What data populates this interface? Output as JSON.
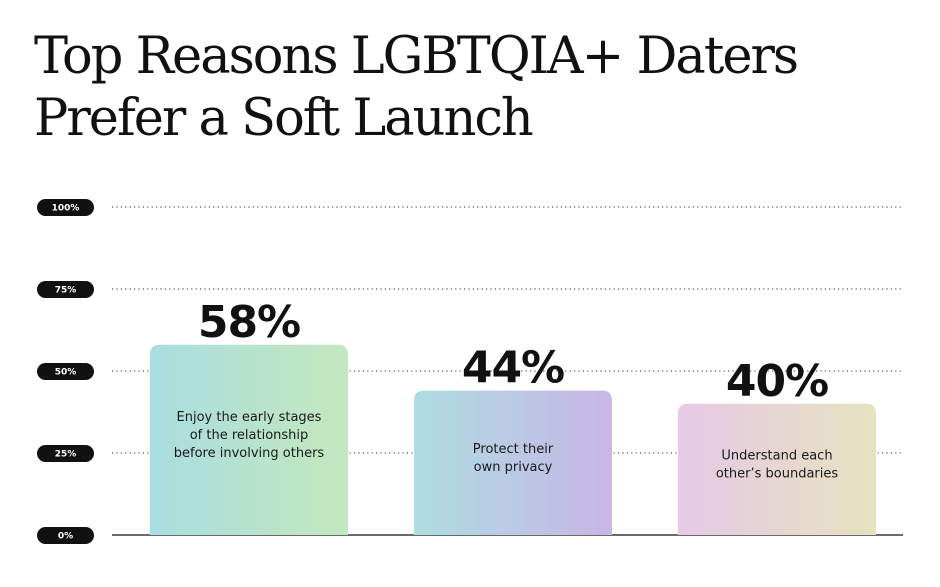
{
  "chart_data": {
    "type": "bar",
    "title": "Top Reasons LGBTQIA+ Daters Prefer a Soft Launch",
    "categories": [
      "Enjoy the early stages of the relationship before involving others",
      "Protect their own privacy",
      "Understand each other’s boundaries"
    ],
    "category_lines": [
      [
        "Enjoy the early stages",
        "of the relationship",
        "before involving others"
      ],
      [
        "Protect their",
        "own privacy"
      ],
      [
        "Understand each",
        "other’s boundaries"
      ]
    ],
    "values": [
      58,
      44,
      40
    ],
    "value_labels": [
      "58%",
      "44%",
      "40%"
    ],
    "ylim": [
      0,
      100
    ],
    "yticks": [
      0,
      25,
      50,
      75,
      100
    ],
    "ytick_labels": [
      "0%",
      "25%",
      "50%",
      "75%",
      "100%"
    ],
    "grid": true,
    "bar_gradients": [
      [
        "#a9dde0",
        "#c4e8bd"
      ],
      [
        "#aedde2",
        "#c8b6e6"
      ],
      [
        "#e6c9e6",
        "#e6e3c0"
      ]
    ]
  }
}
